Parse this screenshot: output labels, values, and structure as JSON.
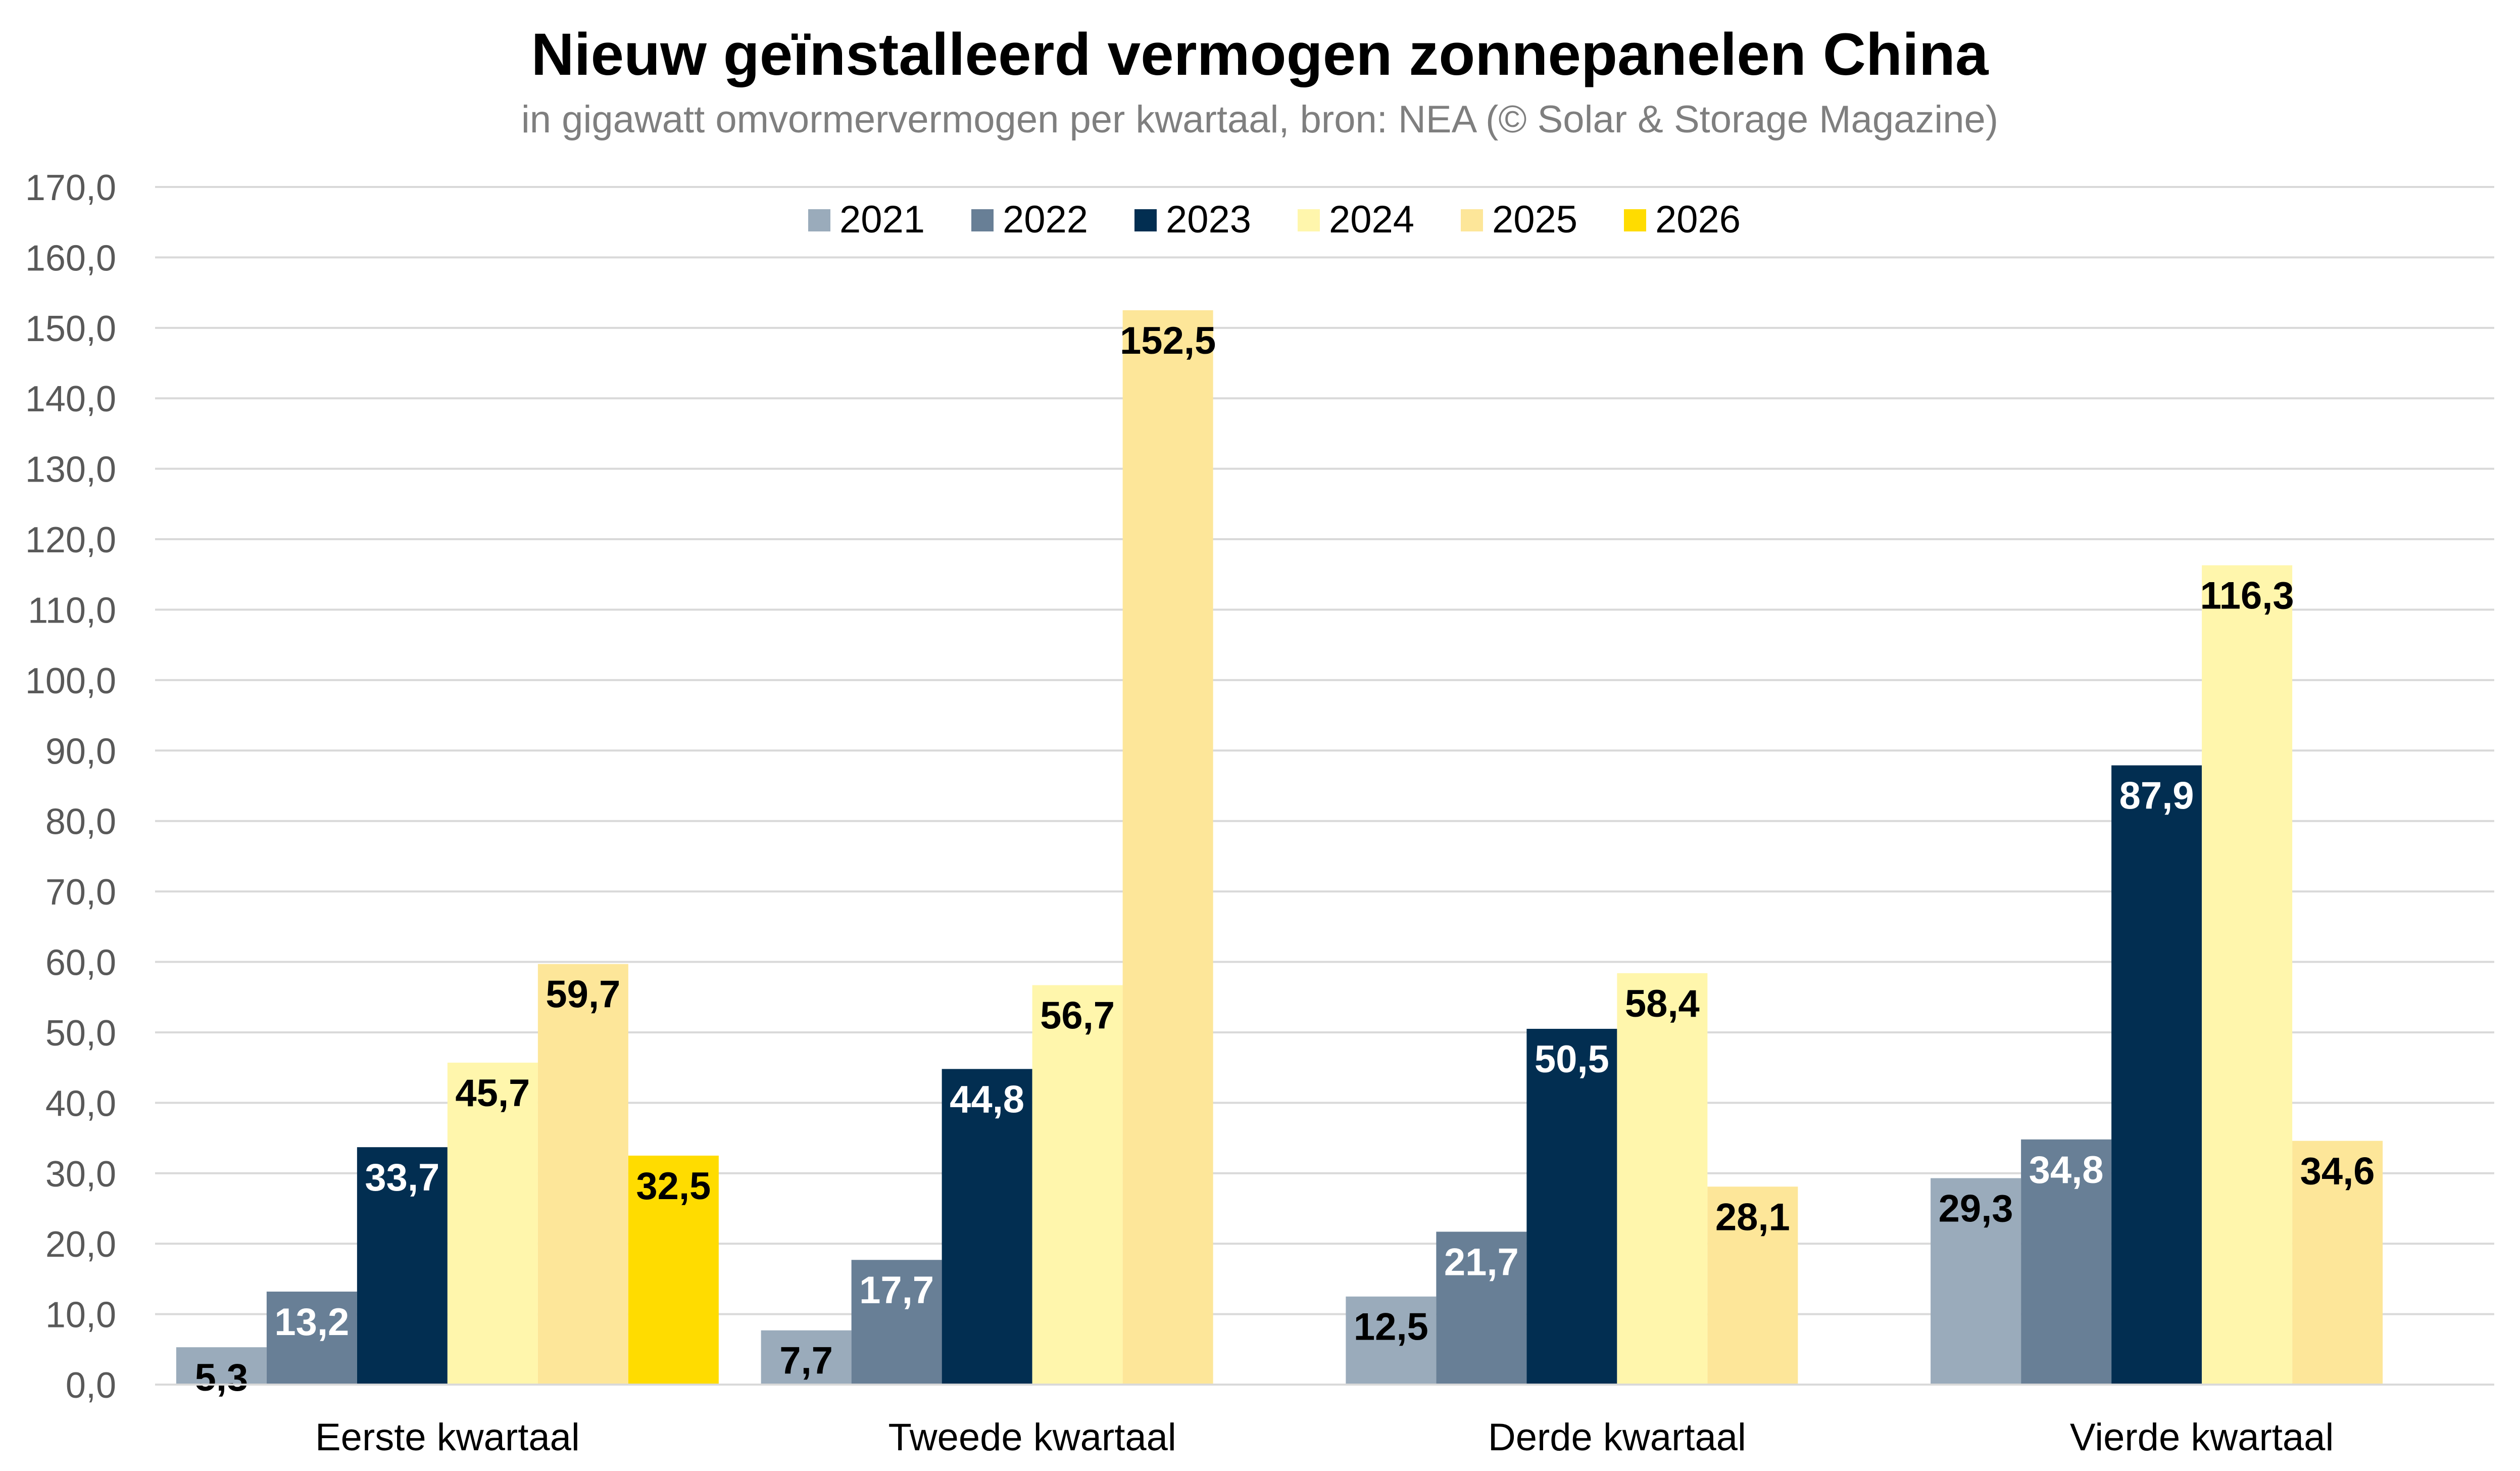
{
  "chart_data": {
    "type": "bar",
    "title": "Nieuw geïnstalleerd vermogen zonnepanelen China",
    "subtitle": "in gigawatt omvormervermogen per kwartaal, bron: NEA (© Solar & Storage Magazine)",
    "xlabel": "",
    "ylabel": "",
    "ylim": [
      0,
      170
    ],
    "y_ticks": [
      "0,0",
      "10,0",
      "20,0",
      "30,0",
      "40,0",
      "50,0",
      "60,0",
      "70,0",
      "80,0",
      "90,0",
      "100,0",
      "110,0",
      "120,0",
      "130,0",
      "140,0",
      "150,0",
      "160,0",
      "170,0"
    ],
    "y_tick_values": [
      0,
      10,
      20,
      30,
      40,
      50,
      60,
      70,
      80,
      90,
      100,
      110,
      120,
      130,
      140,
      150,
      160,
      170
    ],
    "grid": true,
    "legend_position": "top-center",
    "categories": [
      "Eerste kwartaal",
      "Tweede kwartaal",
      "Derde kwartaal",
      "Vierde kwartaal"
    ],
    "series": [
      {
        "name": "2021",
        "color": "#9aabbb",
        "label_color": "#000000",
        "values": [
          5.3,
          7.7,
          12.5,
          29.3
        ],
        "labels": [
          "5,3",
          "7,7",
          "12,5",
          "29,3"
        ]
      },
      {
        "name": "2022",
        "color": "#687f96",
        "label_color": "#ffffff",
        "values": [
          13.2,
          17.7,
          21.7,
          34.8
        ],
        "labels": [
          "13,2",
          "17,7",
          "21,7",
          "34,8"
        ]
      },
      {
        "name": "2023",
        "color": "#022e51",
        "label_color": "#ffffff",
        "values": [
          33.7,
          44.8,
          50.5,
          87.9
        ],
        "labels": [
          "33,7",
          "44,8",
          "50,5",
          "87,9"
        ]
      },
      {
        "name": "2024",
        "color": "#fff6ac",
        "label_color": "#000000",
        "values": [
          45.7,
          56.7,
          58.4,
          116.3
        ],
        "labels": [
          "45,7",
          "56,7",
          "58,4",
          "116,3"
        ]
      },
      {
        "name": "2025",
        "color": "#fde699",
        "label_color": "#000000",
        "values": [
          59.7,
          152.5,
          28.1,
          34.6
        ],
        "labels": [
          "59,7",
          "152,5",
          "28,1",
          "34,6"
        ]
      },
      {
        "name": "2026",
        "color": "#ffdc00",
        "label_color": "#000000",
        "values": [
          32.5,
          null,
          null,
          null
        ],
        "labels": [
          "32,5",
          null,
          null,
          null
        ]
      }
    ]
  }
}
